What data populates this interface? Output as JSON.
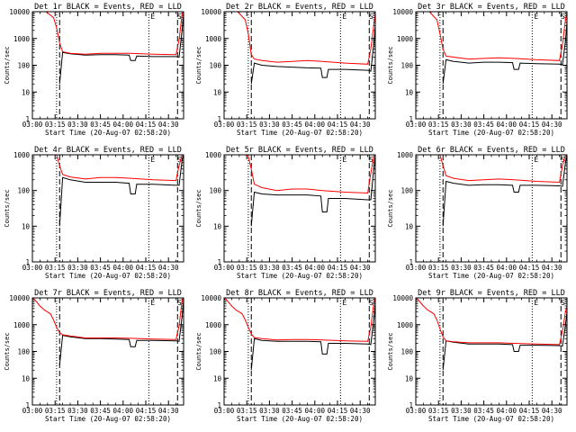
{
  "page": {
    "background": "#ffffff",
    "events_color": "#000000",
    "lld_color": "#ff0000"
  },
  "chart_data": [
    {
      "type": "line",
      "title": "Det 1r BLACK = Events, RED = LLD",
      "xlabel": "Start Time (20-Aug-07 02:58:20)",
      "ylabel": "Counts/sec",
      "yscale": "log",
      "ylim": [
        1,
        10000
      ],
      "xlim": [
        "03:00",
        "04:40"
      ],
      "x_ticks": [
        "03:00",
        "03:15",
        "03:30",
        "03:45",
        "04:00",
        "04:15",
        "04:30"
      ],
      "y_ticks": [
        "1",
        "10",
        "100",
        "1000",
        "10000"
      ],
      "dotted_vlines": [
        "03:16",
        "04:17"
      ],
      "dashed_vlines": [
        "03:18",
        "04:36"
      ],
      "corner_labels": [
        "E",
        "S"
      ],
      "series": [
        {
          "color": "#000000",
          "x": [
            "03:18",
            "03:20",
            "03:25",
            "03:35",
            "03:45",
            "03:55",
            "04:04",
            "04:05",
            "04:08",
            "04:09",
            "04:20",
            "04:35",
            "04:37",
            "04:39",
            "04:40"
          ],
          "y": [
            20,
            300,
            270,
            240,
            250,
            250,
            240,
            150,
            150,
            220,
            210,
            210,
            200,
            2000,
            8000
          ]
        },
        {
          "color": "#ff0000",
          "x": [
            "03:00",
            "03:09",
            "03:14",
            "03:16",
            "03:18",
            "03:20",
            "03:25",
            "03:35",
            "03:45",
            "03:55",
            "04:05",
            "04:20",
            "04:35",
            "04:37",
            "04:39",
            "04:40"
          ],
          "y": [
            10000,
            10000,
            6000,
            2500,
            700,
            320,
            280,
            260,
            280,
            280,
            280,
            260,
            250,
            900,
            8000,
            10000
          ]
        }
      ]
    },
    {
      "type": "line",
      "title": "Det 2r BLACK = Events, RED = LLD",
      "xlabel": "Start Time (20-Aug-07 02:58:20)",
      "ylabel": "Counts/sec",
      "yscale": "log",
      "ylim": [
        1,
        10000
      ],
      "xlim": [
        "03:00",
        "04:40"
      ],
      "x_ticks": [
        "03:00",
        "03:15",
        "03:30",
        "03:45",
        "04:00",
        "04:15",
        "04:30"
      ],
      "y_ticks": [
        "1",
        "10",
        "100",
        "1000",
        "10000"
      ],
      "dotted_vlines": [
        "03:16",
        "04:17"
      ],
      "dashed_vlines": [
        "03:18",
        "04:36"
      ],
      "corner_labels": [
        "E",
        "S"
      ],
      "series": [
        {
          "color": "#000000",
          "x": [
            "03:18",
            "03:20",
            "03:25",
            "03:35",
            "03:45",
            "03:55",
            "04:04",
            "04:05",
            "04:08",
            "04:09",
            "04:20",
            "04:35",
            "04:37",
            "04:39",
            "04:40"
          ],
          "y": [
            20,
            120,
            100,
            90,
            85,
            80,
            78,
            35,
            35,
            70,
            70,
            65,
            60,
            600,
            3000
          ]
        },
        {
          "color": "#ff0000",
          "x": [
            "03:00",
            "03:09",
            "03:14",
            "03:16",
            "03:18",
            "03:20",
            "03:25",
            "03:35",
            "03:45",
            "03:55",
            "04:05",
            "04:20",
            "04:35",
            "04:37",
            "04:39",
            "04:40"
          ],
          "y": [
            10000,
            10000,
            5000,
            1500,
            250,
            170,
            150,
            130,
            140,
            150,
            140,
            120,
            110,
            400,
            3000,
            8000
          ]
        }
      ]
    },
    {
      "type": "line",
      "title": "Det 3r BLACK = Events, RED = LLD",
      "xlabel": "Start Time (20-Aug-07 02:58:20)",
      "ylabel": "Counts/sec",
      "yscale": "log",
      "ylim": [
        1,
        10000
      ],
      "xlim": [
        "03:00",
        "04:40"
      ],
      "x_ticks": [
        "03:00",
        "03:15",
        "03:30",
        "03:45",
        "04:00",
        "04:15",
        "04:30"
      ],
      "y_ticks": [
        "1",
        "10",
        "100",
        "1000",
        "10000"
      ],
      "dotted_vlines": [
        "03:16",
        "04:17"
      ],
      "dashed_vlines": [
        "03:18",
        "04:36"
      ],
      "corner_labels": [
        "E",
        "S"
      ],
      "series": [
        {
          "color": "#000000",
          "x": [
            "03:18",
            "03:20",
            "03:25",
            "03:35",
            "03:45",
            "03:55",
            "04:04",
            "04:05",
            "04:08",
            "04:09",
            "04:20",
            "04:35",
            "04:37",
            "04:39",
            "04:40"
          ],
          "y": [
            20,
            160,
            140,
            120,
            130,
            130,
            125,
            70,
            70,
            120,
            115,
            110,
            105,
            800,
            4000
          ]
        },
        {
          "color": "#ff0000",
          "x": [
            "03:00",
            "03:09",
            "03:14",
            "03:16",
            "03:18",
            "03:20",
            "03:25",
            "03:35",
            "03:45",
            "03:55",
            "04:05",
            "04:20",
            "04:35",
            "04:37",
            "04:39",
            "04:40"
          ],
          "y": [
            10000,
            10000,
            5000,
            1500,
            400,
            220,
            200,
            170,
            180,
            190,
            180,
            160,
            150,
            600,
            5000,
            9000
          ]
        }
      ]
    },
    {
      "type": "line",
      "title": "Det 4r BLACK = Events, RED = LLD",
      "xlabel": "Start Time (20-Aug-07 02:58:20)",
      "ylabel": "Counts/sec",
      "yscale": "log",
      "ylim": [
        1,
        1000
      ],
      "xlim": [
        "03:00",
        "04:40"
      ],
      "x_ticks": [
        "03:00",
        "03:15",
        "03:30",
        "03:45",
        "04:00",
        "04:15",
        "04:30"
      ],
      "y_ticks": [
        "1",
        "10",
        "100",
        "1000"
      ],
      "dotted_vlines": [
        "03:16",
        "04:17"
      ],
      "dashed_vlines": [
        "03:18",
        "04:36"
      ],
      "corner_labels": [
        "E",
        "S"
      ],
      "series": [
        {
          "color": "#000000",
          "x": [
            "03:18",
            "03:20",
            "03:25",
            "03:35",
            "03:45",
            "03:55",
            "04:04",
            "04:05",
            "04:08",
            "04:09",
            "04:20",
            "04:35",
            "04:37",
            "04:39",
            "04:40"
          ],
          "y": [
            10,
            230,
            200,
            170,
            170,
            170,
            160,
            80,
            80,
            150,
            150,
            140,
            140,
            700,
            1000
          ]
        },
        {
          "color": "#ff0000",
          "x": [
            "03:00",
            "03:09",
            "03:14",
            "03:16",
            "03:18",
            "03:20",
            "03:25",
            "03:35",
            "03:45",
            "03:55",
            "04:05",
            "04:20",
            "04:35",
            "04:37",
            "04:39",
            "04:40"
          ],
          "y": [
            1000,
            1000,
            1000,
            1000,
            500,
            280,
            240,
            210,
            230,
            230,
            220,
            200,
            190,
            500,
            1000,
            1000
          ]
        }
      ]
    },
    {
      "type": "line",
      "title": "Det 5r BLACK = Events, RED = LLD",
      "xlabel": "Start Time (20-Aug-07 02:58:20)",
      "ylabel": "Counts/sec",
      "yscale": "log",
      "ylim": [
        1,
        1000
      ],
      "xlim": [
        "03:00",
        "04:40"
      ],
      "x_ticks": [
        "03:00",
        "03:15",
        "03:30",
        "03:45",
        "04:00",
        "04:15",
        "04:30"
      ],
      "y_ticks": [
        "1",
        "10",
        "100",
        "1000"
      ],
      "dotted_vlines": [
        "03:16",
        "04:17"
      ],
      "dashed_vlines": [
        "03:18",
        "04:36"
      ],
      "corner_labels": [
        "E",
        "S"
      ],
      "series": [
        {
          "color": "#000000",
          "x": [
            "03:18",
            "03:20",
            "03:25",
            "03:35",
            "03:45",
            "03:55",
            "04:04",
            "04:05",
            "04:08",
            "04:09",
            "04:20",
            "04:35",
            "04:37",
            "04:39",
            "04:40"
          ],
          "y": [
            10,
            90,
            80,
            75,
            75,
            75,
            70,
            25,
            25,
            60,
            60,
            55,
            55,
            400,
            900
          ]
        },
        {
          "color": "#ff0000",
          "x": [
            "03:00",
            "03:09",
            "03:14",
            "03:16",
            "03:18",
            "03:20",
            "03:25",
            "03:35",
            "03:45",
            "03:55",
            "04:05",
            "04:20",
            "04:35",
            "04:37",
            "04:39",
            "04:40"
          ],
          "y": [
            1000,
            1000,
            1000,
            900,
            400,
            150,
            120,
            100,
            110,
            110,
            100,
            90,
            85,
            300,
            900,
            1000
          ]
        }
      ]
    },
    {
      "type": "line",
      "title": "Det 6r BLACK = Events, RED = LLD",
      "xlabel": "Start Time (20-Aug-07 02:58:20)",
      "ylabel": "Counts/sec",
      "yscale": "log",
      "ylim": [
        1,
        1000
      ],
      "xlim": [
        "03:00",
        "04:40"
      ],
      "x_ticks": [
        "03:00",
        "03:15",
        "03:30",
        "03:45",
        "04:00",
        "04:15",
        "04:30"
      ],
      "y_ticks": [
        "1",
        "10",
        "100",
        "1000"
      ],
      "dotted_vlines": [
        "03:16",
        "04:17"
      ],
      "dashed_vlines": [
        "03:18",
        "04:36"
      ],
      "corner_labels": [
        "E",
        "S"
      ],
      "series": [
        {
          "color": "#000000",
          "x": [
            "03:18",
            "03:20",
            "03:25",
            "03:35",
            "03:45",
            "03:55",
            "04:04",
            "04:05",
            "04:08",
            "04:09",
            "04:20",
            "04:35",
            "04:37",
            "04:39",
            "04:40"
          ],
          "y": [
            10,
            180,
            160,
            140,
            145,
            145,
            140,
            90,
            90,
            140,
            140,
            135,
            130,
            600,
            1000
          ]
        },
        {
          "color": "#ff0000",
          "x": [
            "03:00",
            "03:09",
            "03:14",
            "03:16",
            "03:18",
            "03:20",
            "03:25",
            "03:35",
            "03:45",
            "03:55",
            "04:05",
            "04:20",
            "04:35",
            "04:37",
            "04:39",
            "04:40"
          ],
          "y": [
            1000,
            1000,
            1000,
            1000,
            500,
            260,
            220,
            190,
            200,
            210,
            200,
            180,
            170,
            500,
            1000,
            1000
          ]
        }
      ]
    },
    {
      "type": "line",
      "title": "Det 7r BLACK = Events, RED = LLD",
      "xlabel": "Start Time (20-Aug-07 02:58:20)",
      "ylabel": "Counts/sec",
      "yscale": "log",
      "ylim": [
        1,
        10000
      ],
      "xlim": [
        "03:00",
        "04:40"
      ],
      "x_ticks": [
        "03:00",
        "03:15",
        "03:30",
        "03:45",
        "04:00",
        "04:15",
        "04:30"
      ],
      "y_ticks": [
        "1",
        "10",
        "100",
        "1000",
        "10000"
      ],
      "dotted_vlines": [
        "03:16",
        "04:17"
      ],
      "dashed_vlines": [
        "03:18",
        "04:36"
      ],
      "corner_labels": [
        "E",
        "S"
      ],
      "series": [
        {
          "color": "#000000",
          "x": [
            "03:18",
            "03:20",
            "03:25",
            "03:35",
            "03:45",
            "03:55",
            "04:04",
            "04:05",
            "04:08",
            "04:09",
            "04:20",
            "04:35",
            "04:37",
            "04:39",
            "04:40"
          ],
          "y": [
            30,
            400,
            350,
            300,
            300,
            290,
            280,
            150,
            150,
            260,
            260,
            250,
            240,
            2000,
            8000
          ]
        },
        {
          "color": "#ff0000",
          "x": [
            "03:00",
            "03:02",
            "03:05",
            "03:08",
            "03:10",
            "03:12",
            "03:14",
            "03:16",
            "03:18",
            "03:20",
            "03:25",
            "03:35",
            "03:45",
            "03:55",
            "04:05",
            "04:20",
            "04:35",
            "04:37",
            "04:39",
            "04:40"
          ],
          "y": [
            10000,
            8000,
            5000,
            3500,
            3000,
            2500,
            1500,
            800,
            500,
            420,
            380,
            320,
            320,
            320,
            310,
            290,
            280,
            900,
            8000,
            10000
          ]
        }
      ]
    },
    {
      "type": "line",
      "title": "Det 8r BLACK = Events, RED = LLD",
      "xlabel": "Start Time (20-Aug-07 02:58:20)",
      "ylabel": "Counts/sec",
      "yscale": "log",
      "ylim": [
        1,
        10000
      ],
      "xlim": [
        "03:00",
        "04:40"
      ],
      "x_ticks": [
        "03:00",
        "03:15",
        "03:30",
        "03:45",
        "04:00",
        "04:15",
        "04:30"
      ],
      "y_ticks": [
        "1",
        "10",
        "100",
        "1000",
        "10000"
      ],
      "dotted_vlines": [
        "03:16",
        "04:17"
      ],
      "dashed_vlines": [
        "03:18",
        "04:36"
      ],
      "corner_labels": [
        "E",
        "S"
      ],
      "series": [
        {
          "color": "#000000",
          "x": [
            "03:18",
            "03:20",
            "03:25",
            "03:35",
            "03:45",
            "03:55",
            "04:04",
            "04:05",
            "04:08",
            "04:09",
            "04:20",
            "04:35",
            "04:37",
            "04:39",
            "04:40"
          ],
          "y": [
            20,
            300,
            260,
            240,
            240,
            240,
            230,
            80,
            80,
            200,
            200,
            190,
            180,
            1500,
            6000
          ]
        },
        {
          "color": "#ff0000",
          "x": [
            "03:00",
            "03:02",
            "03:05",
            "03:08",
            "03:10",
            "03:12",
            "03:14",
            "03:16",
            "03:18",
            "03:20",
            "03:25",
            "03:35",
            "03:45",
            "03:55",
            "04:05",
            "04:20",
            "04:35",
            "04:37",
            "04:39",
            "04:40"
          ],
          "y": [
            10000,
            8000,
            5000,
            3500,
            3000,
            2500,
            1500,
            800,
            450,
            330,
            300,
            270,
            280,
            280,
            270,
            250,
            240,
            800,
            6000,
            10000
          ]
        }
      ]
    },
    {
      "type": "line",
      "title": "Det 9r BLACK = Events, RED = LLD",
      "xlabel": "Start Time (20-Aug-07 02:58:20)",
      "ylabel": "Counts/sec",
      "yscale": "log",
      "ylim": [
        1,
        10000
      ],
      "xlim": [
        "03:00",
        "04:40"
      ],
      "x_ticks": [
        "03:00",
        "03:15",
        "03:30",
        "03:45",
        "04:00",
        "04:15",
        "04:30"
      ],
      "y_ticks": [
        "1",
        "10",
        "100",
        "1000",
        "10000"
      ],
      "dotted_vlines": [
        "03:16",
        "04:17"
      ],
      "dashed_vlines": [
        "03:18",
        "04:36"
      ],
      "corner_labels": [
        "E",
        "S"
      ],
      "series": [
        {
          "color": "#000000",
          "x": [
            "03:18",
            "03:20",
            "03:25",
            "03:35",
            "03:45",
            "03:55",
            "04:04",
            "04:05",
            "04:08",
            "04:09",
            "04:20",
            "04:35",
            "04:37",
            "04:39",
            "04:40"
          ],
          "y": [
            20,
            250,
            220,
            190,
            190,
            190,
            180,
            100,
            100,
            170,
            170,
            165,
            160,
            1000,
            3000
          ]
        },
        {
          "color": "#ff0000",
          "x": [
            "03:00",
            "03:02",
            "03:05",
            "03:08",
            "03:10",
            "03:12",
            "03:14",
            "03:16",
            "03:18",
            "03:20",
            "03:25",
            "03:35",
            "03:45",
            "03:55",
            "04:05",
            "04:20",
            "04:35",
            "04:37",
            "04:39",
            "04:40"
          ],
          "y": [
            10000,
            8000,
            5000,
            3500,
            3000,
            2500,
            1500,
            700,
            350,
            250,
            230,
            210,
            210,
            210,
            200,
            190,
            180,
            600,
            3000,
            5000
          ]
        }
      ]
    }
  ]
}
